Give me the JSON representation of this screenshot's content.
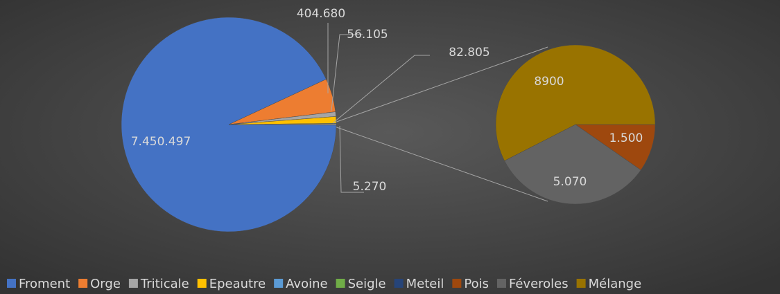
{
  "chart_data": {
    "type": "pie_of_pie",
    "categories": [
      "Froment",
      "Orge",
      "Triticale",
      "Epeautre",
      "Avoine",
      "Seigle",
      "Meteil",
      "Pois",
      "Féveroles",
      "Mélange"
    ],
    "values": [
      7450497,
      404680,
      56105,
      82805,
      5270,
      0,
      0,
      1500,
      5070,
      8900
    ],
    "value_labels": [
      "7.450.497",
      "404.680",
      "56.105",
      "82.805",
      "5.270",
      null,
      null,
      "1.500",
      "5.070",
      "8900"
    ],
    "colors": [
      "#4472c4",
      "#ed7d31",
      "#a5a5a5",
      "#ffc000",
      "#5b9bd5",
      "#70ad47",
      "#264478",
      "#9e480e",
      "#636363",
      "#997300"
    ],
    "secondary_count": 3,
    "legend": "bottom"
  }
}
